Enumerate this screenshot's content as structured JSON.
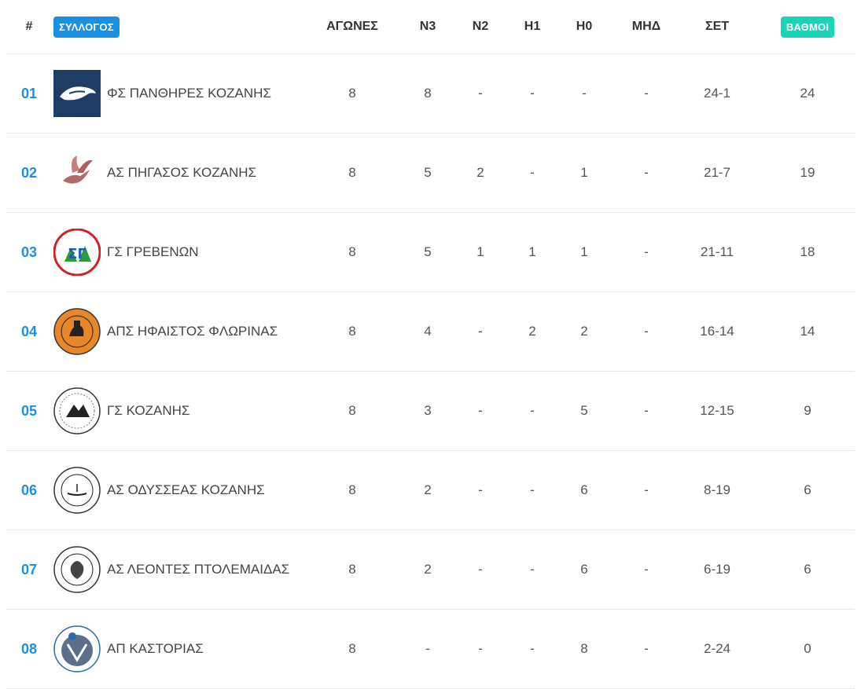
{
  "header": {
    "rank": "#",
    "club": "ΣΥΛΛΟΓΟΣ",
    "games": "ΑΓΩΝΕΣ",
    "n3": "Ν3",
    "n2": "Ν2",
    "h1": "Η1",
    "h0": "Η0",
    "mhd": "ΜΗΔ",
    "set": "ΣΕΤ",
    "points": "ΒΑΘΜΟΙ"
  },
  "colors": {
    "accent_blue": "#1a8fe6",
    "accent_teal": "#19d5b8"
  },
  "rows": [
    {
      "rank": "01",
      "club": "ΦΣ ΠΑΝΘΗΡΕΣ ΚΟΖΑΝΗΣ",
      "logo": "panther-logo",
      "games": "8",
      "n3": "8",
      "n2": "-",
      "h1": "-",
      "h0": "-",
      "mhd": "-",
      "set": "24-1",
      "points": "24"
    },
    {
      "rank": "02",
      "club": "ΑΣ ΠΗΓΑΣΟΣ ΚΟΖΑΝΗΣ",
      "logo": "pegasus-logo",
      "games": "8",
      "n3": "5",
      "n2": "2",
      "h1": "-",
      "h0": "1",
      "mhd": "-",
      "set": "21-7",
      "points": "19"
    },
    {
      "rank": "03",
      "club": "ΓΣ ΓΡΕΒΕΝΩΝ",
      "logo": "grevena-logo",
      "games": "8",
      "n3": "5",
      "n2": "1",
      "h1": "1",
      "h0": "1",
      "mhd": "-",
      "set": "21-11",
      "points": "18"
    },
    {
      "rank": "04",
      "club": "ΑΠΣ ΗΦΑΙΣΤΟΣ ΦΛΩΡΙΝΑΣ",
      "logo": "hephaestus-logo",
      "games": "8",
      "n3": "4",
      "n2": "-",
      "h1": "2",
      "h0": "2",
      "mhd": "-",
      "set": "16-14",
      "points": "14"
    },
    {
      "rank": "05",
      "club": "ΓΣ ΚΟΖΑΝΗΣ",
      "logo": "kozani-logo",
      "games": "8",
      "n3": "3",
      "n2": "-",
      "h1": "-",
      "h0": "5",
      "mhd": "-",
      "set": "12-15",
      "points": "9"
    },
    {
      "rank": "06",
      "club": "ΑΣ ΟΔΥΣΣΕΑΣ ΚΟΖΑΝΗΣ",
      "logo": "odysseas-logo",
      "games": "8",
      "n3": "2",
      "n2": "-",
      "h1": "-",
      "h0": "6",
      "mhd": "-",
      "set": "8-19",
      "points": "6"
    },
    {
      "rank": "07",
      "club": "ΑΣ ΛΕΟΝΤΕΣ ΠΤΟΛΕΜΑΙΔΑΣ",
      "logo": "leontes-logo",
      "games": "8",
      "n3": "2",
      "n2": "-",
      "h1": "-",
      "h0": "6",
      "mhd": "-",
      "set": "6-19",
      "points": "6"
    },
    {
      "rank": "08",
      "club": "ΑΠ ΚΑΣΤΟΡΙΑΣ",
      "logo": "kastoria-logo",
      "games": "8",
      "n3": "-",
      "n2": "-",
      "h1": "-",
      "h0": "8",
      "mhd": "-",
      "set": "2-24",
      "points": "0"
    }
  ]
}
